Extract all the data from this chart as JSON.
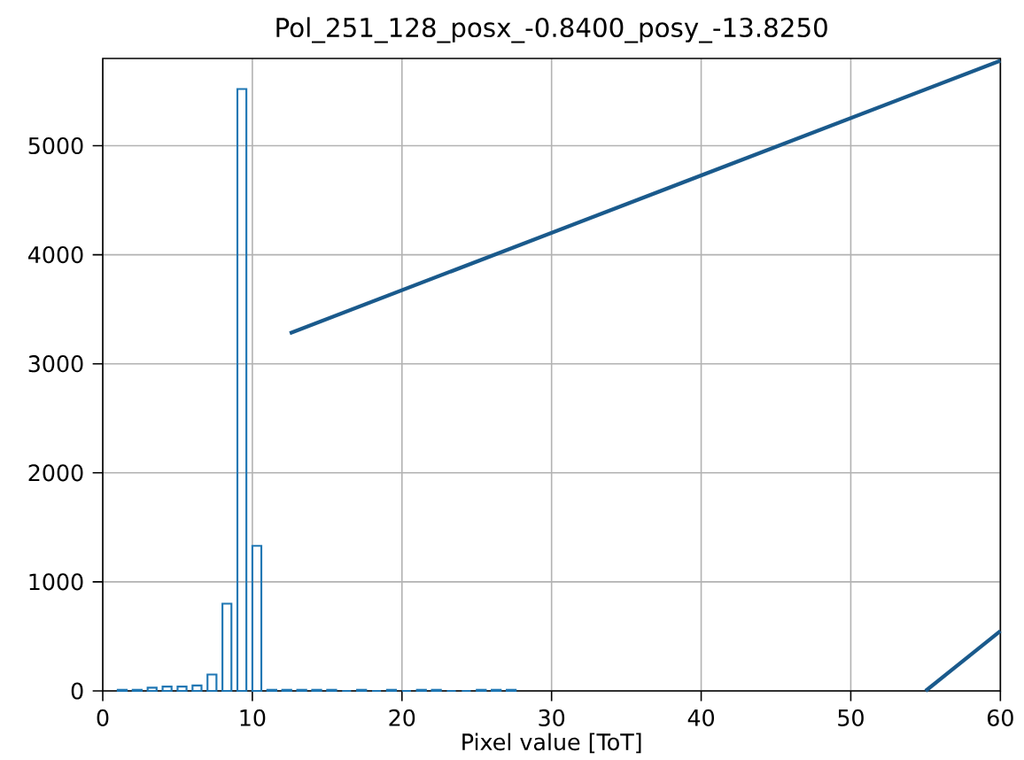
{
  "chart_data": {
    "type": "histogram",
    "title": "Pol_251_128_posx_-0.8400_posy_-13.8250",
    "xlabel": "Pixel value [ToT]",
    "bins": [
      1,
      2,
      3,
      4,
      5,
      6,
      7,
      8,
      9,
      10,
      11,
      12,
      13,
      14,
      15,
      16,
      17,
      18,
      19,
      20,
      21,
      22,
      23,
      24,
      25,
      26,
      27,
      28
    ],
    "values": [
      10,
      10,
      30,
      40,
      40,
      50,
      150,
      800,
      5520,
      1330,
      10,
      10,
      10,
      10,
      10,
      0,
      10,
      0,
      10,
      0,
      10,
      10,
      0,
      0,
      10,
      10,
      10
    ],
    "color": "#1f77b4",
    "series": [
      {
        "type": "line",
        "color": "#1a5a8c",
        "x": [
          12.5,
          60
        ],
        "values": [
          3280,
          5780
        ]
      },
      {
        "type": "line",
        "color": "#1a5a8c",
        "x": [
          55,
          60
        ],
        "values": [
          0,
          550
        ]
      }
    ],
    "xlim": [
      0,
      60
    ],
    "ylim": [
      0,
      5800
    ],
    "xticks": [
      0,
      10,
      20,
      30,
      40,
      50,
      60
    ],
    "yticks": [
      0,
      1000,
      2000,
      3000,
      4000,
      5000
    ],
    "grid": true
  }
}
